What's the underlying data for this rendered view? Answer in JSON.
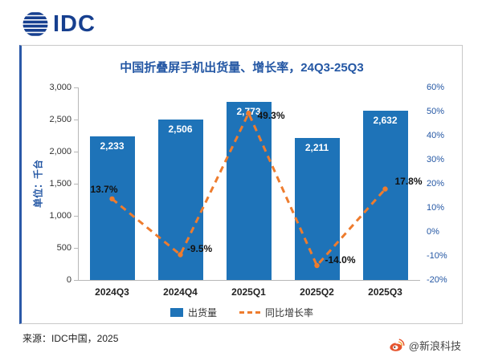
{
  "logo": {
    "text": "IDC"
  },
  "title": "中国折叠屏手机出货量、增长率，24Q3-25Q3",
  "chart_data": {
    "type": "combo",
    "categories": [
      "2024Q3",
      "2024Q4",
      "2025Q1",
      "2025Q2",
      "2025Q3"
    ],
    "series": [
      {
        "name": "出货量",
        "type": "bar",
        "values": [
          2233,
          2506,
          2773,
          2211,
          2632
        ],
        "labels": [
          "2,233",
          "2,506",
          "2,773",
          "2,211",
          "2,632"
        ],
        "color": "#1e73b8"
      },
      {
        "name": "同比增长率",
        "type": "line",
        "values": [
          13.7,
          -9.5,
          49.3,
          -14.0,
          17.8
        ],
        "labels": [
          "13.7%",
          "-9.5%",
          "49.3%",
          "-14.0%",
          "17.8%"
        ],
        "color": "#ee7c2e",
        "style": "dashed"
      }
    ],
    "left_axis": {
      "label": "单位：千台",
      "min": 0,
      "max": 3000,
      "ticks": [
        "3,000",
        "2,500",
        "2,000",
        "1,500",
        "1,000",
        "500",
        "0"
      ]
    },
    "right_axis": {
      "min": -20,
      "max": 60,
      "ticks": [
        "60%",
        "50%",
        "40%",
        "30%",
        "20%",
        "10%",
        "0%",
        "-10%",
        "-20%"
      ]
    },
    "legend": [
      "出货量",
      "同比增长率"
    ],
    "grid": false,
    "legend_position": "bottom"
  },
  "footer": {
    "source": "来源：IDC中国，2025",
    "credit": "@新浪科技"
  }
}
